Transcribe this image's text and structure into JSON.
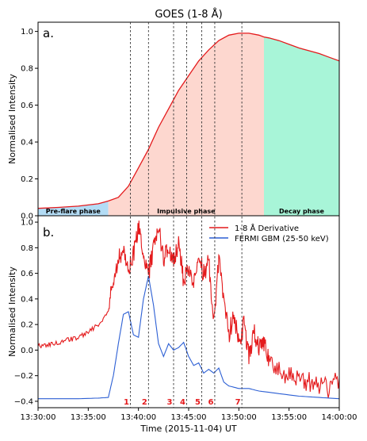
{
  "chart_data": [
    {
      "type": "area",
      "panel": "a.",
      "title": "GOES (1-8 Å)",
      "ylabel": "Normalised Intensity",
      "xlabel": "",
      "ylim": [
        0,
        1.05
      ],
      "xlim_minutes": [
        0,
        30
      ],
      "yticks": [
        "0.0",
        "0.2",
        "0.4",
        "0.6",
        "0.8",
        "1.0"
      ],
      "grid": false,
      "series": [
        {
          "color": "#e41a1c",
          "x_minutes": [
            0,
            2,
            4,
            6,
            7,
            8,
            9,
            10,
            11,
            12,
            13,
            14,
            15,
            16,
            17,
            18,
            19,
            20,
            21,
            22,
            22.5,
            23,
            24,
            25,
            26,
            27,
            28,
            29,
            30
          ],
          "values": [
            0.04,
            0.045,
            0.052,
            0.065,
            0.08,
            0.1,
            0.16,
            0.26,
            0.36,
            0.48,
            0.58,
            0.68,
            0.76,
            0.84,
            0.9,
            0.95,
            0.98,
            0.99,
            0.99,
            0.98,
            0.97,
            0.965,
            0.95,
            0.93,
            0.91,
            0.895,
            0.88,
            0.86,
            0.84
          ]
        }
      ],
      "phases": [
        {
          "label": "Pre-flare phase",
          "start_minutes": 0,
          "end_minutes": 7,
          "color": "#b3dcf5"
        },
        {
          "label": "Impulsive phase",
          "start_minutes": 7,
          "end_minutes": 22.5,
          "color": "#fdd7cf"
        },
        {
          "label": "Decay phase",
          "start_minutes": 22.5,
          "end_minutes": 30,
          "color": "#a8f5d8"
        }
      ]
    },
    {
      "type": "line",
      "panel": "b.",
      "xlabel": "Time (2015-11-04) UT",
      "ylabel": "Normalised Intensity",
      "ylim": [
        -0.45,
        1.05
      ],
      "xlim_minutes": [
        0,
        30
      ],
      "yticks": [
        "−0.4",
        "−0.2",
        "0.0",
        "0.2",
        "0.4",
        "0.6",
        "0.8",
        "1.0"
      ],
      "xticks": [
        "13:30:00",
        "13:35:00",
        "13:40:00",
        "13:45:00",
        "13:50:00",
        "13:55:00",
        "14:00:00"
      ],
      "legend_position": "top-right",
      "grid": false,
      "series": [
        {
          "name": "1-8 Å Derivative",
          "color": "#e41a1c",
          "x_minutes": [
            0,
            1,
            2,
            3,
            4,
            5,
            6,
            7,
            7.5,
            8,
            8.5,
            9,
            9.5,
            10,
            10.5,
            11,
            11.5,
            12,
            12.5,
            13,
            13.5,
            14,
            14.5,
            15,
            15.5,
            16,
            16.5,
            17,
            17.5,
            18,
            18.5,
            19,
            19.5,
            20,
            20.5,
            21,
            21.5,
            22,
            22.5,
            23,
            24,
            25,
            26,
            27,
            28,
            29,
            30
          ],
          "values": [
            0.03,
            0.04,
            0.06,
            0.08,
            0.1,
            0.14,
            0.2,
            0.3,
            0.55,
            0.7,
            0.78,
            0.62,
            0.75,
            0.98,
            0.7,
            0.6,
            0.78,
            0.95,
            0.7,
            0.8,
            0.72,
            0.82,
            0.55,
            0.62,
            0.5,
            0.72,
            0.6,
            0.68,
            0.25,
            0.7,
            0.4,
            0.1,
            0.3,
            0.05,
            0.2,
            -0.05,
            0.15,
            0.0,
            0.05,
            -0.1,
            -0.15,
            -0.2,
            -0.22,
            -0.25,
            -0.28,
            -0.3,
            -0.22
          ]
        },
        {
          "name": "FERMI GBM (25-50 keV)",
          "color": "#2c5fd4",
          "x_minutes": [
            0,
            2,
            4,
            6,
            7,
            7.5,
            8,
            8.5,
            9,
            9.5,
            10,
            10.5,
            11,
            11.5,
            12,
            12.5,
            13,
            13.5,
            14,
            14.5,
            15,
            15.5,
            16,
            16.5,
            17,
            17.5,
            18,
            18.5,
            19,
            20,
            21,
            22,
            24,
            26,
            28,
            30
          ],
          "values": [
            -0.38,
            -0.38,
            -0.38,
            -0.375,
            -0.37,
            -0.2,
            0.05,
            0.28,
            0.3,
            0.12,
            0.1,
            0.4,
            0.58,
            0.35,
            0.05,
            -0.05,
            0.05,
            0.0,
            0.02,
            0.06,
            -0.05,
            -0.12,
            -0.1,
            -0.18,
            -0.15,
            -0.18,
            -0.14,
            -0.25,
            -0.28,
            -0.3,
            -0.3,
            -0.32,
            -0.34,
            -0.36,
            -0.37,
            -0.38
          ]
        }
      ]
    }
  ],
  "markers": [
    {
      "label": "1",
      "x_minutes": 9.2
    },
    {
      "label": "2",
      "x_minutes": 11.0
    },
    {
      "label": "3",
      "x_minutes": 13.5
    },
    {
      "label": "4",
      "x_minutes": 14.8
    },
    {
      "label": "5",
      "x_minutes": 16.3
    },
    {
      "label": "6",
      "x_minutes": 17.6
    },
    {
      "label": "7",
      "x_minutes": 20.3
    }
  ],
  "marker_color": "#e41a1c"
}
